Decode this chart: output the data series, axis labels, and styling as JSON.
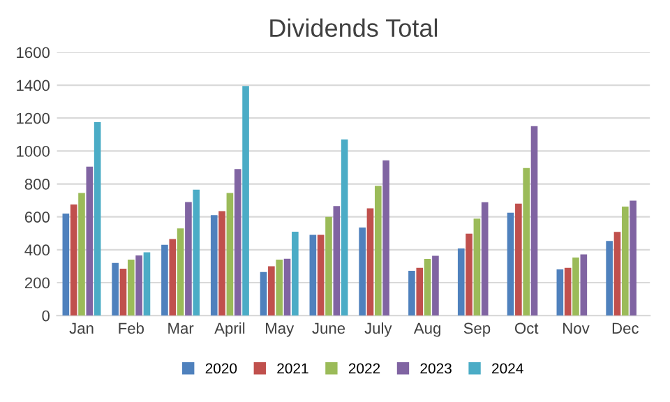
{
  "chart_data": {
    "type": "bar",
    "title": "Dividends Total",
    "categories": [
      "Jan",
      "Feb",
      "Mar",
      "April",
      "May",
      "June",
      "July",
      "Aug",
      "Sep",
      "Oct",
      "Nov",
      "Dec"
    ],
    "series": [
      {
        "name": "2020",
        "color": "#4f81bd",
        "values": [
          620,
          320,
          430,
          610,
          265,
          490,
          535,
          272,
          408,
          625,
          281,
          453
        ]
      },
      {
        "name": "2021",
        "color": "#c0504d",
        "values": [
          675,
          285,
          465,
          635,
          300,
          490,
          652,
          290,
          498,
          680,
          290,
          508
        ]
      },
      {
        "name": "2022",
        "color": "#9bbb59",
        "values": [
          745,
          340,
          530,
          745,
          340,
          600,
          788,
          344,
          589,
          897,
          353,
          662
        ]
      },
      {
        "name": "2023",
        "color": "#8064a2",
        "values": [
          905,
          365,
          690,
          890,
          345,
          665,
          943,
          363,
          689,
          1151,
          372,
          698
        ]
      },
      {
        "name": "2024",
        "color": "#4bacc6",
        "values": [
          1175,
          385,
          765,
          1395,
          510,
          1070,
          null,
          null,
          null,
          null,
          null,
          null
        ]
      }
    ],
    "ylim": [
      0,
      1600
    ],
    "yticks": [
      0,
      200,
      400,
      600,
      800,
      1000,
      1200,
      1400,
      1600
    ],
    "grid": "y",
    "legend": "bottom"
  }
}
